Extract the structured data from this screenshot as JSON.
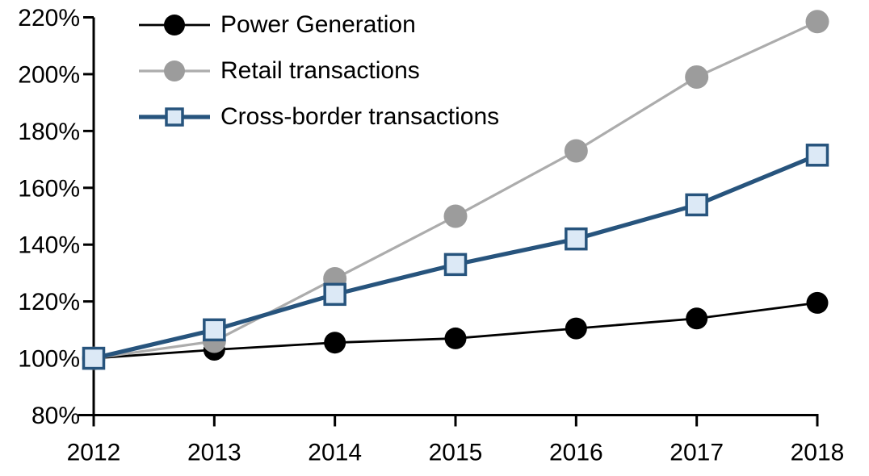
{
  "chart_data": {
    "type": "line",
    "title": "",
    "categories": [
      "2012",
      "2013",
      "2014",
      "2015",
      "2016",
      "2017",
      "2018"
    ],
    "series": [
      {
        "name": "Power Generation",
        "values": [
          100,
          103,
          105.5,
          107,
          110.5,
          114,
          119.5
        ],
        "color": "#000000",
        "marker": "circle",
        "marker_color": "#000000",
        "marker_size": 27,
        "line_width": 2.8
      },
      {
        "name": "Retail transactions",
        "values": [
          100,
          106,
          128,
          150,
          173,
          199,
          218.5
        ],
        "color": "#ACACAC",
        "marker": "circle",
        "marker_color": "#9C9C9C",
        "marker_size": 29,
        "line_width": 3.2
      },
      {
        "name": "Cross-border transactions",
        "values": [
          100,
          110,
          122.5,
          133,
          142,
          154,
          171.5
        ],
        "color": "#27547D",
        "marker": "square",
        "marker_fill": "#DCE9F6",
        "marker_stroke": "#27547D",
        "marker_size": 25,
        "line_width": 5.2
      }
    ],
    "ylim": [
      80,
      220
    ],
    "ytick_values": [
      80,
      100,
      120,
      140,
      160,
      180,
      200,
      220
    ],
    "ytick_labels": [
      "80%",
      "100%",
      "120%",
      "140%",
      "160%",
      "180%",
      "200%",
      "220%"
    ],
    "xtick_labels": [
      "2012",
      "2013",
      "2014",
      "2015",
      "2016",
      "2017",
      "2018"
    ],
    "axis_color": "#000000",
    "grid": false,
    "legend_position": "top-left"
  }
}
